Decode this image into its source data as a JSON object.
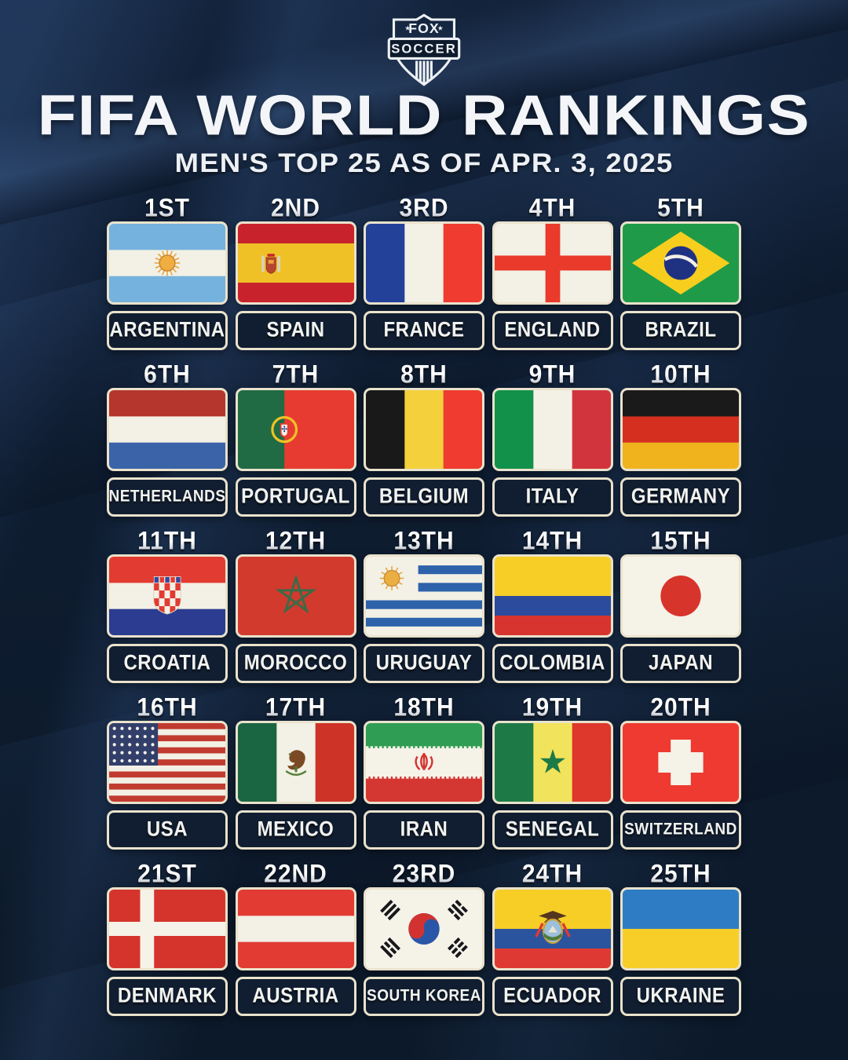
{
  "brand": {
    "logo_top": "FOX",
    "logo_bottom": "SOCCER"
  },
  "header": {
    "title": "FIFA WORLD RANKINGS",
    "subtitle": "MEN'S TOP 25 AS OF APR. 3, 2025"
  },
  "colors": {
    "background": "#0E1C30",
    "card_border": "#E9E2CC",
    "plate_bg": "#111E31",
    "text": "#F2F3F0"
  },
  "rankings": [
    {
      "rank": "1ST",
      "country": "ARGENTINA",
      "flag": "argentina"
    },
    {
      "rank": "2ND",
      "country": "SPAIN",
      "flag": "spain"
    },
    {
      "rank": "3RD",
      "country": "FRANCE",
      "flag": "france"
    },
    {
      "rank": "4TH",
      "country": "ENGLAND",
      "flag": "england"
    },
    {
      "rank": "5TH",
      "country": "BRAZIL",
      "flag": "brazil"
    },
    {
      "rank": "6TH",
      "country": "NETHERLANDS",
      "flag": "netherlands"
    },
    {
      "rank": "7TH",
      "country": "PORTUGAL",
      "flag": "portugal"
    },
    {
      "rank": "8TH",
      "country": "BELGIUM",
      "flag": "belgium"
    },
    {
      "rank": "9TH",
      "country": "ITALY",
      "flag": "italy"
    },
    {
      "rank": "10TH",
      "country": "GERMANY",
      "flag": "germany"
    },
    {
      "rank": "11TH",
      "country": "CROATIA",
      "flag": "croatia"
    },
    {
      "rank": "12TH",
      "country": "MOROCCO",
      "flag": "morocco"
    },
    {
      "rank": "13TH",
      "country": "URUGUAY",
      "flag": "uruguay"
    },
    {
      "rank": "14TH",
      "country": "COLOMBIA",
      "flag": "colombia"
    },
    {
      "rank": "15TH",
      "country": "JAPAN",
      "flag": "japan"
    },
    {
      "rank": "16TH",
      "country": "USA",
      "flag": "usa"
    },
    {
      "rank": "17TH",
      "country": "MEXICO",
      "flag": "mexico"
    },
    {
      "rank": "18TH",
      "country": "IRAN",
      "flag": "iran"
    },
    {
      "rank": "19TH",
      "country": "SENEGAL",
      "flag": "senegal"
    },
    {
      "rank": "20TH",
      "country": "SWITZERLAND",
      "flag": "switzerland"
    },
    {
      "rank": "21ST",
      "country": "DENMARK",
      "flag": "denmark"
    },
    {
      "rank": "22ND",
      "country": "AUSTRIA",
      "flag": "austria"
    },
    {
      "rank": "23RD",
      "country": "SOUTH KOREA",
      "flag": "south_korea"
    },
    {
      "rank": "24TH",
      "country": "ECUADOR",
      "flag": "ecuador"
    },
    {
      "rank": "25TH",
      "country": "UKRAINE",
      "flag": "ukraine"
    }
  ]
}
